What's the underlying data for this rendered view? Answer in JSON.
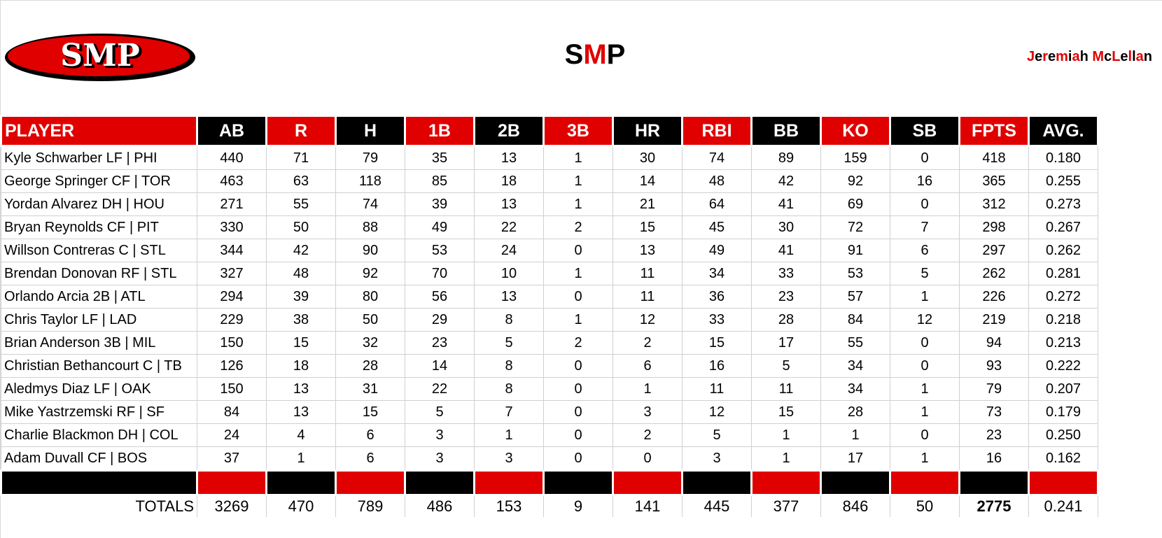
{
  "header": {
    "logo_text": "SMP",
    "title": {
      "s": "S",
      "m": "M",
      "p": "P"
    },
    "author": [
      {
        "t": "J",
        "c": "red"
      },
      {
        "t": "e",
        "c": "blk"
      },
      {
        "t": "r",
        "c": "red"
      },
      {
        "t": "e",
        "c": "blk"
      },
      {
        "t": "m",
        "c": "red"
      },
      {
        "t": "i",
        "c": "blk"
      },
      {
        "t": "a",
        "c": "red"
      },
      {
        "t": "h",
        "c": "blk"
      },
      {
        "t": " ",
        "c": "blk"
      },
      {
        "t": "M",
        "c": "red"
      },
      {
        "t": "c",
        "c": "blk"
      },
      {
        "t": "L",
        "c": "red"
      },
      {
        "t": "e",
        "c": "blk"
      },
      {
        "t": "l",
        "c": "red"
      },
      {
        "t": "l",
        "c": "blk"
      },
      {
        "t": "a",
        "c": "red"
      },
      {
        "t": "n",
        "c": "blk"
      }
    ],
    "author_full": "Jeremiah McLellan"
  },
  "colors": {
    "red": "#e00000",
    "black": "#000000",
    "grid": "#d0d0d0"
  },
  "table": {
    "columns": [
      "PLAYER",
      "AB",
      "R",
      "H",
      "1B",
      "2B",
      "3B",
      "HR",
      "RBI",
      "BB",
      "KO",
      "SB",
      "FPTS",
      "AVG."
    ],
    "rows": [
      [
        "Kyle Schwarber LF | PHI",
        "440",
        "71",
        "79",
        "35",
        "13",
        "1",
        "30",
        "74",
        "89",
        "159",
        "0",
        "418",
        "0.180"
      ],
      [
        "George Springer CF | TOR",
        "463",
        "63",
        "118",
        "85",
        "18",
        "1",
        "14",
        "48",
        "42",
        "92",
        "16",
        "365",
        "0.255"
      ],
      [
        "Yordan Alvarez DH | HOU",
        "271",
        "55",
        "74",
        "39",
        "13",
        "1",
        "21",
        "64",
        "41",
        "69",
        "0",
        "312",
        "0.273"
      ],
      [
        "Bryan Reynolds CF | PIT",
        "330",
        "50",
        "88",
        "49",
        "22",
        "2",
        "15",
        "45",
        "30",
        "72",
        "7",
        "298",
        "0.267"
      ],
      [
        "Willson Contreras C | STL",
        "344",
        "42",
        "90",
        "53",
        "24",
        "0",
        "13",
        "49",
        "41",
        "91",
        "6",
        "297",
        "0.262"
      ],
      [
        "Brendan Donovan RF | STL",
        "327",
        "48",
        "92",
        "70",
        "10",
        "1",
        "11",
        "34",
        "33",
        "53",
        "5",
        "262",
        "0.281"
      ],
      [
        "Orlando Arcia 2B | ATL",
        "294",
        "39",
        "80",
        "56",
        "13",
        "0",
        "11",
        "36",
        "23",
        "57",
        "1",
        "226",
        "0.272"
      ],
      [
        "Chris Taylor LF | LAD",
        "229",
        "38",
        "50",
        "29",
        "8",
        "1",
        "12",
        "33",
        "28",
        "84",
        "12",
        "219",
        "0.218"
      ],
      [
        "Brian Anderson 3B | MIL",
        "150",
        "15",
        "32",
        "23",
        "5",
        "2",
        "2",
        "15",
        "17",
        "55",
        "0",
        "94",
        "0.213"
      ],
      [
        "Christian Bethancourt C | TB",
        "126",
        "18",
        "28",
        "14",
        "8",
        "0",
        "6",
        "16",
        "5",
        "34",
        "0",
        "93",
        "0.222"
      ],
      [
        "Aledmys Diaz LF | OAK",
        "150",
        "13",
        "31",
        "22",
        "8",
        "0",
        "1",
        "11",
        "11",
        "34",
        "1",
        "79",
        "0.207"
      ],
      [
        "Mike Yastrzemski RF | SF",
        "84",
        "13",
        "15",
        "5",
        "7",
        "0",
        "3",
        "12",
        "15",
        "28",
        "1",
        "73",
        "0.179"
      ],
      [
        "Charlie Blackmon DH | COL",
        "24",
        "4",
        "6",
        "3",
        "1",
        "0",
        "2",
        "5",
        "1",
        "1",
        "0",
        "23",
        "0.250"
      ],
      [
        "Adam Duvall CF | BOS",
        "37",
        "1",
        "6",
        "3",
        "3",
        "0",
        "0",
        "3",
        "1",
        "17",
        "1",
        "16",
        "0.162"
      ]
    ],
    "totals": [
      "TOTALS",
      "3269",
      "470",
      "789",
      "486",
      "153",
      "9",
      "141",
      "445",
      "377",
      "846",
      "50",
      "2775",
      "0.241"
    ]
  }
}
